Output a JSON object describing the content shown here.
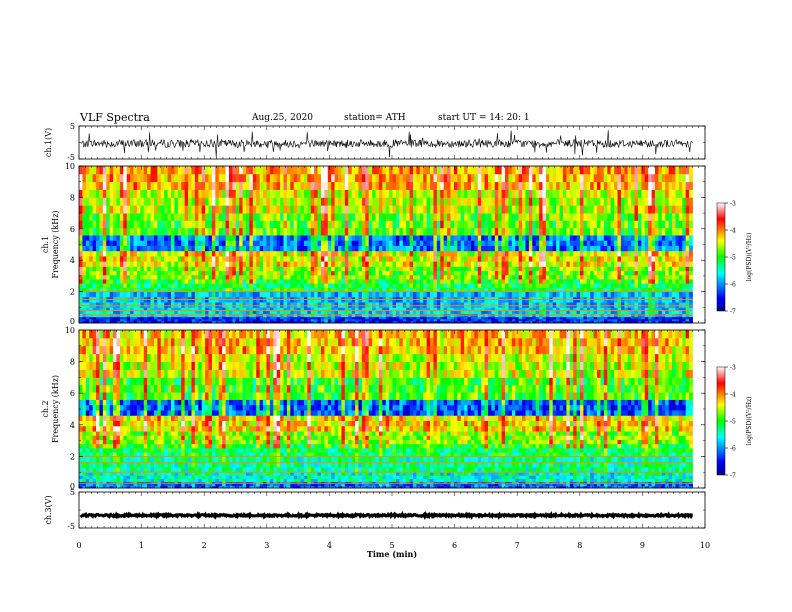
{
  "header": {
    "title": "VLF Spectra",
    "date": "Aug.25, 2020",
    "station": "station= ATH",
    "start": "start UT =   14: 20: 1"
  },
  "chart_data": [
    {
      "type": "line",
      "panel": "ch1-waveform",
      "ylabel": "ch.1(V)",
      "ylim": [
        -5,
        5
      ],
      "yticks": [
        "5",
        "-5"
      ],
      "xlim": [
        0,
        10
      ],
      "x_end": 9.8,
      "baseline": -0.3,
      "noise_amplitude": 1.2
    },
    {
      "type": "heatmap",
      "panel": "ch1-spectrogram",
      "ylabel": "ch.1 Frequency (kHz)",
      "ylim": [
        0,
        10
      ],
      "yticks": [
        "0",
        "2",
        "4",
        "6",
        "8",
        "10"
      ],
      "xlim": [
        0,
        10
      ],
      "x_end": 9.8,
      "colorbar_label": "log(PSD)(V²/Hz)",
      "colorbar_ticks": [
        "-3",
        "-4",
        "-5",
        "-6",
        "-7"
      ],
      "clim": [
        -7,
        -3
      ],
      "bands": [
        {
          "f": [
            0,
            0.4
          ],
          "v": -6.5
        },
        {
          "f": [
            0.4,
            1.0
          ],
          "v": -5.8
        },
        {
          "f": [
            1.0,
            2.0
          ],
          "v": -5.9
        },
        {
          "f": [
            2.0,
            2.8
          ],
          "v": -5.2
        },
        {
          "f": [
            2.8,
            3.6
          ],
          "v": -4.9
        },
        {
          "f": [
            3.6,
            4.6
          ],
          "v": -4.6
        },
        {
          "f": [
            4.6,
            5.6
          ],
          "v": -5.9
        },
        {
          "f": [
            5.6,
            7.0
          ],
          "v": -5.0
        },
        {
          "f": [
            7.0,
            8.5
          ],
          "v": -4.7
        },
        {
          "f": [
            8.5,
            10.0
          ],
          "v": -4.3
        }
      ],
      "lines_khz": [
        0.5,
        0.8,
        1.1,
        1.5,
        2.0
      ]
    },
    {
      "type": "heatmap",
      "panel": "ch2-spectrogram",
      "ylabel": "ch.2 Frequency (kHz)",
      "ylim": [
        0,
        10
      ],
      "yticks": [
        "0",
        "2",
        "4",
        "6",
        "8",
        "10"
      ],
      "xlim": [
        0,
        10
      ],
      "x_end": 9.8,
      "colorbar_label": "log(PSD)(V²/Hz)",
      "colorbar_ticks": [
        "-3",
        "-4",
        "-5",
        "-6",
        "-7"
      ],
      "clim": [
        -7,
        -3
      ],
      "bands": [
        {
          "f": [
            0,
            0.4
          ],
          "v": -6.2
        },
        {
          "f": [
            0.4,
            1.0
          ],
          "v": -5.6
        },
        {
          "f": [
            1.0,
            2.0
          ],
          "v": -5.4
        },
        {
          "f": [
            2.0,
            2.8
          ],
          "v": -5.2
        },
        {
          "f": [
            2.8,
            3.6
          ],
          "v": -4.9
        },
        {
          "f": [
            3.6,
            4.6
          ],
          "v": -4.5
        },
        {
          "f": [
            4.6,
            5.6
          ],
          "v": -6.0
        },
        {
          "f": [
            5.6,
            7.0
          ],
          "v": -5.1
        },
        {
          "f": [
            7.0,
            8.5
          ],
          "v": -4.7
        },
        {
          "f": [
            8.5,
            10.0
          ],
          "v": -4.4
        }
      ],
      "lines_khz": [
        0.3,
        1.0,
        1.6,
        2.0
      ]
    },
    {
      "type": "line",
      "panel": "ch3-waveform",
      "ylabel": "ch.3(V)",
      "ylim": [
        -5,
        5
      ],
      "yticks": [
        "5",
        "-5"
      ],
      "xlim": [
        0,
        10
      ],
      "x_end": 9.8,
      "baseline": -1.5,
      "noise_amplitude": 0.25
    }
  ],
  "xaxis": {
    "label": "Time (min)",
    "ticks": [
      "0",
      "1",
      "2",
      "3",
      "4",
      "5",
      "6",
      "7",
      "8",
      "9",
      "10"
    ]
  }
}
